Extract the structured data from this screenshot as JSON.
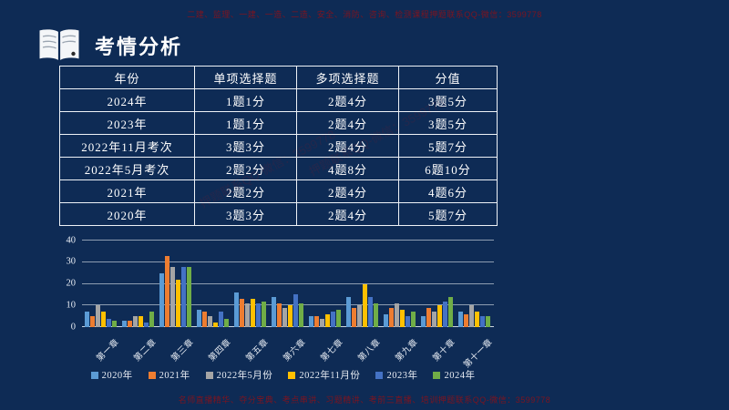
{
  "watermark_top": "二建、监理、一建、一造、二造、安全、消防、咨询、检测课程押题联系QQ-微信：3599778",
  "watermark_bottom": "名师直播精华、夺分宝典、考点串讲、习题精讲、考前三直播、培训押题联系QQ-微信：3599778",
  "watermark_diagonal": "押题联系QQ-微信：3599778",
  "header": {
    "title": "考情分析",
    "icon": "open-book-icon"
  },
  "table": {
    "columns": [
      "年份",
      "单项选择题",
      "多项选择题",
      "分值"
    ],
    "rows": [
      [
        "2024年",
        "1题1分",
        "2题4分",
        "3题5分"
      ],
      [
        "2023年",
        "1题1分",
        "2题4分",
        "3题5分"
      ],
      [
        "2022年11月考次",
        "3题3分",
        "2题4分",
        "5题7分"
      ],
      [
        "2022年5月考次",
        "2题2分",
        "4题8分",
        "6题10分"
      ],
      [
        "2021年",
        "2题2分",
        "2题4分",
        "4题6分"
      ],
      [
        "2020年",
        "3题3分",
        "2题4分",
        "5题7分"
      ]
    ]
  },
  "chart_data": {
    "type": "bar",
    "title": "",
    "xlabel": "",
    "ylabel": "",
    "ylim": [
      0,
      40
    ],
    "yticks": [
      0,
      10,
      20,
      30,
      40
    ],
    "grid": true,
    "legend_position": "bottom",
    "categories": [
      "第一章",
      "第二章",
      "第三章",
      "第四章",
      "第五章",
      "第六章",
      "第七章",
      "第八章",
      "第九章",
      "第十章",
      "第十一章"
    ],
    "series": [
      {
        "name": "2020年",
        "color": "#5B9BD5",
        "values": [
          7,
          3,
          25,
          8,
          16,
          14,
          5,
          14,
          6,
          5,
          7
        ]
      },
      {
        "name": "2021年",
        "color": "#ED7D31",
        "values": [
          5,
          3,
          33,
          7,
          13,
          11,
          5,
          9,
          9,
          9,
          6
        ]
      },
      {
        "name": "2022年5月份",
        "color": "#A5A5A5",
        "values": [
          10,
          5,
          28,
          5,
          11,
          9,
          4,
          10,
          11,
          7,
          10
        ]
      },
      {
        "name": "2022年11月份",
        "color": "#FFC000",
        "values": [
          7,
          5,
          22,
          2,
          13,
          10,
          6,
          20,
          8,
          10,
          7
        ]
      },
      {
        "name": "2023年",
        "color": "#4472C4",
        "values": [
          4,
          2,
          28,
          7,
          11,
          15,
          7,
          14,
          5,
          12,
          5
        ]
      },
      {
        "name": "2024年",
        "color": "#70AD47",
        "values": [
          3,
          7,
          28,
          4,
          12,
          11,
          8,
          11,
          7,
          14,
          5
        ]
      }
    ]
  },
  "colors": {
    "background": "#0E2B55",
    "table_border": "#EEF2F7",
    "text": "#FFFFFF",
    "watermark": "#7C1420",
    "gridline": "#D2DAE4"
  }
}
